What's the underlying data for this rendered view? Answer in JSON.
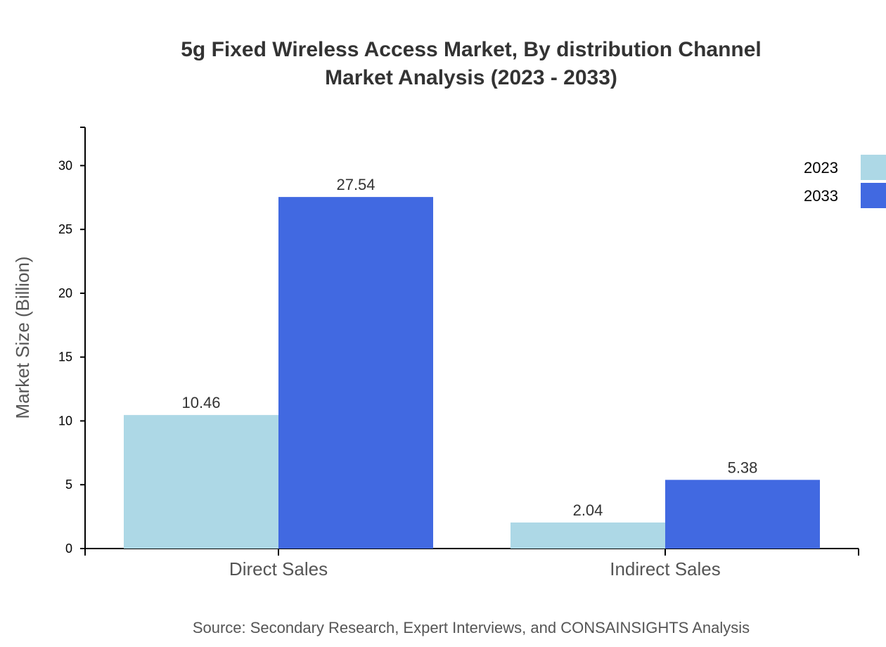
{
  "chart_data": {
    "type": "bar",
    "title_lines": [
      "5g Fixed Wireless Access Market, By distribution Channel",
      "Market Analysis (2023 - 2033)"
    ],
    "xlabel": "",
    "ylabel": "Market Size (Billion)",
    "ylim": [
      0,
      33
    ],
    "yticks": [
      0,
      5,
      10,
      15,
      20,
      25,
      30
    ],
    "categories": [
      "Direct Sales",
      "Indirect Sales"
    ],
    "series": [
      {
        "name": "2023",
        "color": "#add8e6",
        "values": [
          10.46,
          2.04
        ]
      },
      {
        "name": "2033",
        "color": "#4169e1",
        "values": [
          27.54,
          5.38
        ]
      }
    ],
    "legend_position": "top-right",
    "grid": false,
    "source": "Source: Secondary Research, Expert Interviews, and CONSAINSIGHTS Analysis"
  }
}
